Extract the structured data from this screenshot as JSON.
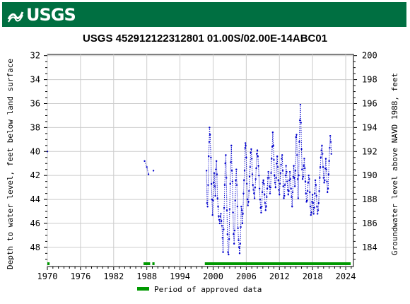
{
  "header": {
    "logo_text": "USGS"
  },
  "chart_data": {
    "type": "scatter",
    "title": "USGS 452912122312801 01.00S/02.00E-14ABC01",
    "ylabel_left": "Depth to water level, feet below land surface",
    "ylabel_right": "Groundwater level above NAVD 1988, feet",
    "xticks": [
      "1970",
      "1976",
      "1982",
      "1988",
      "1994",
      "2000",
      "2006",
      "2012",
      "2018",
      "2024"
    ],
    "xlim": [
      1970.0,
      2025.4
    ],
    "ylim_left": [
      49.6,
      31.9
    ],
    "yticks_left": [
      "32",
      "34",
      "36",
      "38",
      "40",
      "42",
      "44",
      "46",
      "48"
    ],
    "yticks_right": [
      "200",
      "198",
      "196",
      "194",
      "192",
      "190",
      "188",
      "186",
      "184"
    ],
    "datum_offset": 232.0,
    "series_color": "#0000cc",
    "approved_color": "#009900",
    "legend": {
      "label": "Period of approved data",
      "position": "bottom-center"
    },
    "approved_periods": [
      [
        1970.0,
        1970.4
      ],
      [
        1987.4,
        1988.6
      ],
      [
        1989.0,
        1989.4
      ],
      [
        1998.5,
        2024.9
      ]
    ],
    "segments": [
      {
        "points": [
          [
            1970.0,
            40.0
          ]
        ]
      },
      {
        "points": [
          [
            1987.6,
            40.8
          ],
          [
            1988.0,
            41.3
          ],
          [
            1988.3,
            41.9
          ]
        ]
      },
      {
        "points": [
          [
            1989.2,
            41.6
          ]
        ]
      },
      {
        "points": [
          [
            1998.8,
            41.6
          ],
          [
            1998.9,
            44.3
          ],
          [
            1999.0,
            44.6
          ],
          [
            1999.1,
            42.8
          ],
          [
            1999.2,
            40.4
          ],
          [
            1999.3,
            39.2
          ],
          [
            1999.35,
            38.0
          ],
          [
            1999.45,
            38.6
          ],
          [
            1999.6,
            40.5
          ],
          [
            1999.7,
            42.7
          ],
          [
            1999.8,
            44.0
          ],
          [
            1999.9,
            45.3
          ],
          [
            2000.0,
            44.1
          ],
          [
            2000.1,
            42.6
          ],
          [
            2000.2,
            41.8
          ],
          [
            2000.3,
            42.9
          ],
          [
            2000.4,
            43.7
          ],
          [
            2000.5,
            41.5
          ],
          [
            2000.6,
            40.8
          ],
          [
            2000.7,
            41.9
          ],
          [
            2000.8,
            43.9
          ],
          [
            2000.9,
            44.6
          ],
          [
            2001.0,
            45.4
          ],
          [
            2001.1,
            45.7
          ],
          [
            2001.2,
            46.0
          ],
          [
            2001.3,
            45.4
          ],
          [
            2001.4,
            45.2
          ],
          [
            2001.5,
            45.8
          ],
          [
            2001.6,
            46.2
          ],
          [
            2001.7,
            47.2
          ],
          [
            2001.8,
            48.4
          ],
          [
            2001.9,
            46.5
          ],
          [
            2002.0,
            44.7
          ],
          [
            2002.1,
            42.8
          ],
          [
            2002.2,
            41.0
          ],
          [
            2002.3,
            40.3
          ],
          [
            2002.4,
            42.2
          ],
          [
            2002.5,
            44.9
          ],
          [
            2002.6,
            46.9
          ],
          [
            2002.7,
            48.4
          ],
          [
            2002.8,
            48.6
          ],
          [
            2002.9,
            47.3
          ],
          [
            2003.0,
            44.8
          ],
          [
            2003.1,
            42.7
          ],
          [
            2003.2,
            40.9
          ],
          [
            2003.3,
            39.5
          ],
          [
            2003.4,
            41.6
          ],
          [
            2003.5,
            42.5
          ],
          [
            2003.6,
            45.1
          ],
          [
            2003.7,
            46.9
          ],
          [
            2003.8,
            47.7
          ],
          [
            2003.9,
            46.6
          ],
          [
            2004.0,
            44.1
          ],
          [
            2004.1,
            42.4
          ],
          [
            2004.2,
            41.5
          ],
          [
            2004.3,
            42.8
          ],
          [
            2004.4,
            44.6
          ],
          [
            2004.5,
            46.4
          ],
          [
            2004.6,
            47.4
          ],
          [
            2004.7,
            48.0
          ],
          [
            2004.8,
            48.5
          ],
          [
            2004.9,
            47.7
          ],
          [
            2005.0,
            46.3
          ],
          [
            2005.1,
            44.6
          ],
          [
            2005.2,
            44.9
          ],
          [
            2005.3,
            46.0
          ],
          [
            2005.4,
            45.2
          ],
          [
            2005.5,
            43.5
          ],
          [
            2005.6,
            42.4
          ],
          [
            2005.7,
            41.6
          ],
          [
            2005.8,
            39.7
          ],
          [
            2005.85,
            39.3
          ],
          [
            2005.9,
            39.5
          ],
          [
            2006.0,
            40.5
          ],
          [
            2006.1,
            42.7
          ],
          [
            2006.2,
            44.0
          ],
          [
            2006.3,
            44.5
          ],
          [
            2006.4,
            44.2
          ],
          [
            2006.5,
            43.3
          ],
          [
            2006.6,
            42.1
          ],
          [
            2006.7,
            41.3
          ],
          [
            2006.8,
            40.1
          ],
          [
            2006.9,
            39.8
          ],
          [
            2007.0,
            40.6
          ],
          [
            2007.1,
            41.9
          ],
          [
            2007.2,
            42.8
          ],
          [
            2007.3,
            43.2
          ],
          [
            2007.4,
            43.5
          ],
          [
            2007.5,
            43.9
          ],
          [
            2007.6,
            43.0
          ],
          [
            2007.7,
            42.3
          ],
          [
            2007.8,
            41.4
          ],
          [
            2007.9,
            40.2
          ],
          [
            2008.0,
            39.9
          ],
          [
            2008.1,
            40.4
          ],
          [
            2008.2,
            41.2
          ],
          [
            2008.3,
            42.0
          ],
          [
            2008.4,
            43.1
          ],
          [
            2008.5,
            44.0
          ],
          [
            2008.6,
            44.7
          ],
          [
            2008.7,
            45.1
          ],
          [
            2008.8,
            44.6
          ],
          [
            2008.9,
            43.4
          ],
          [
            2009.0,
            42.6
          ],
          [
            2009.1,
            42.4
          ],
          [
            2009.2,
            42.7
          ],
          [
            2009.3,
            43.6
          ],
          [
            2009.4,
            44.3
          ],
          [
            2009.5,
            44.9
          ],
          [
            2009.6,
            44.6
          ],
          [
            2009.7,
            43.8
          ],
          [
            2009.8,
            43.1
          ],
          [
            2009.9,
            42.2
          ],
          [
            2010.0,
            41.7
          ],
          [
            2010.1,
            42.2
          ],
          [
            2010.2,
            42.9
          ],
          [
            2010.3,
            43.5
          ],
          [
            2010.4,
            43.0
          ],
          [
            2010.5,
            41.8
          ],
          [
            2010.6,
            40.6
          ],
          [
            2010.7,
            39.6
          ],
          [
            2010.8,
            38.4
          ],
          [
            2010.9,
            39.5
          ],
          [
            2011.0,
            40.7
          ],
          [
            2011.1,
            42.0
          ],
          [
            2011.2,
            42.6
          ],
          [
            2011.3,
            43.0
          ],
          [
            2011.4,
            42.2
          ],
          [
            2011.5,
            41.0
          ],
          [
            2011.6,
            40.4
          ],
          [
            2011.7,
            41.3
          ],
          [
            2011.8,
            42.4
          ],
          [
            2011.9,
            43.2
          ],
          [
            2012.0,
            43.6
          ],
          [
            2012.1,
            42.7
          ],
          [
            2012.2,
            41.8
          ],
          [
            2012.3,
            41.1
          ],
          [
            2012.4,
            40.6
          ],
          [
            2012.5,
            40.3
          ],
          [
            2012.6,
            41.6
          ],
          [
            2012.7,
            42.9
          ],
          [
            2012.8,
            43.9
          ],
          [
            2012.9,
            43.7
          ],
          [
            2013.0,
            42.8
          ],
          [
            2013.1,
            42.0
          ],
          [
            2013.2,
            41.2
          ],
          [
            2013.3,
            41.7
          ],
          [
            2013.4,
            42.5
          ],
          [
            2013.5,
            43.2
          ],
          [
            2013.6,
            43.6
          ],
          [
            2013.7,
            43.3
          ],
          [
            2013.8,
            42.4
          ],
          [
            2013.9,
            41.7
          ],
          [
            2014.0,
            42.3
          ],
          [
            2014.1,
            43.1
          ],
          [
            2014.2,
            43.8
          ],
          [
            2014.3,
            44.6
          ],
          [
            2014.4,
            43.4
          ],
          [
            2014.5,
            42.1
          ],
          [
            2014.6,
            41.2
          ],
          [
            2014.7,
            42.2
          ],
          [
            2014.8,
            42.9
          ],
          [
            2014.9,
            41.6
          ],
          [
            2015.0,
            38.8
          ],
          [
            2015.1,
            38.6
          ],
          [
            2015.2,
            40.3
          ],
          [
            2015.3,
            42.3
          ],
          [
            2015.4,
            43.9
          ],
          [
            2015.5,
            42.0
          ],
          [
            2015.6,
            39.2
          ],
          [
            2015.7,
            37.4
          ],
          [
            2015.8,
            36.1
          ],
          [
            2015.9,
            37.6
          ],
          [
            2016.0,
            39.8
          ],
          [
            2016.1,
            41.5
          ],
          [
            2016.2,
            42.3
          ],
          [
            2016.3,
            42.1
          ],
          [
            2016.4,
            41.2
          ],
          [
            2016.5,
            40.6
          ],
          [
            2016.6,
            41.4
          ],
          [
            2016.7,
            42.5
          ],
          [
            2016.8,
            43.5
          ],
          [
            2016.9,
            44.2
          ],
          [
            2017.0,
            44.1
          ],
          [
            2017.1,
            43.3
          ],
          [
            2017.2,
            42.6
          ],
          [
            2017.3,
            42.0
          ],
          [
            2017.4,
            42.3
          ],
          [
            2017.5,
            43.4
          ],
          [
            2017.6,
            44.6
          ],
          [
            2017.7,
            45.3
          ],
          [
            2017.8,
            45.1
          ],
          [
            2017.9,
            44.2
          ],
          [
            2018.0,
            43.6
          ],
          [
            2018.1,
            44.3
          ],
          [
            2018.2,
            45.2
          ],
          [
            2018.3,
            44.7
          ],
          [
            2018.4,
            43.5
          ],
          [
            2018.5,
            42.4
          ],
          [
            2018.6,
            42.8
          ],
          [
            2018.7,
            43.7
          ],
          [
            2018.8,
            44.6
          ],
          [
            2018.9,
            45.2
          ],
          [
            2019.0,
            44.9
          ],
          [
            2019.1,
            44.3
          ],
          [
            2019.2,
            43.3
          ],
          [
            2019.3,
            42.2
          ],
          [
            2019.4,
            41.3
          ],
          [
            2019.5,
            40.5
          ],
          [
            2019.6,
            39.9
          ],
          [
            2019.7,
            39.5
          ],
          [
            2019.8,
            40.2
          ],
          [
            2019.9,
            41.3
          ],
          [
            2020.0,
            42.2
          ],
          [
            2020.1,
            42.6
          ],
          [
            2020.2,
            42.4
          ],
          [
            2020.3,
            41.4
          ],
          [
            2020.4,
            40.6
          ],
          [
            2020.5,
            41.5
          ],
          [
            2020.6,
            42.5
          ],
          [
            2020.7,
            43.4
          ],
          [
            2020.8,
            43.1
          ],
          [
            2020.9,
            41.9
          ],
          [
            2021.0,
            40.8
          ],
          [
            2021.1,
            39.7
          ],
          [
            2021.2,
            38.7
          ],
          [
            2021.3,
            39.2
          ],
          [
            2021.4,
            40.2
          ]
        ]
      }
    ]
  }
}
